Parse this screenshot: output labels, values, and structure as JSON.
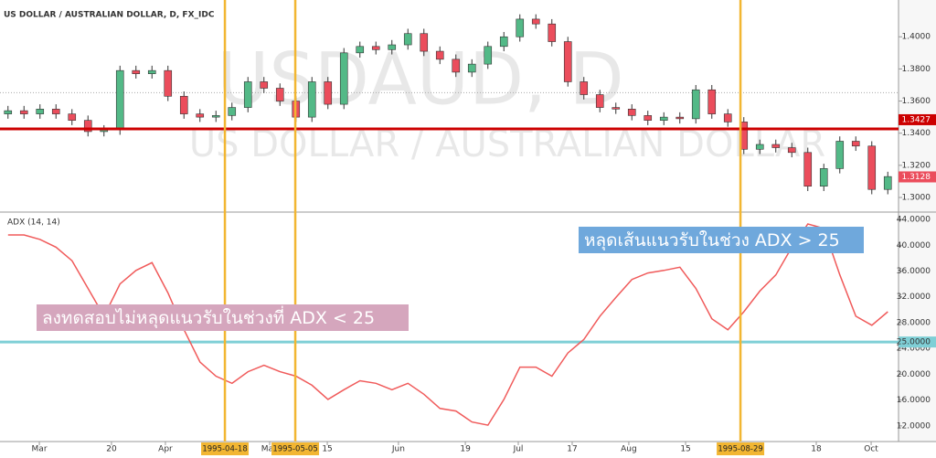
{
  "chart_data": [
    {
      "type": "candlestick",
      "title": "US DOLLAR / AUSTRALIAN DOLLAR, D, FX_IDC",
      "watermark": [
        "USDAUD, D",
        "US DOLLAR / AUSTRALIAN DOLLAR"
      ],
      "open": [
        1.352,
        1.354,
        1.352,
        1.355,
        1.352,
        1.348,
        1.341,
        1.342,
        1.379,
        1.377,
        1.379,
        1.363,
        1.352,
        1.35,
        1.351,
        1.356,
        1.372,
        1.368,
        1.36,
        1.35,
        1.372,
        1.358,
        1.39,
        1.394,
        1.392,
        1.395,
        1.402,
        1.391,
        1.386,
        1.378,
        1.383,
        1.394,
        1.4,
        1.411,
        1.408,
        1.397,
        1.372,
        1.364,
        1.356,
        1.355,
        1.351,
        1.348,
        1.35,
        1.349,
        1.367,
        1.352,
        1.347,
        1.33,
        1.333,
        1.331,
        1.328,
        1.307,
        1.318,
        1.335,
        1.332,
        1.305
      ],
      "high": [
        1.357,
        1.357,
        1.358,
        1.358,
        1.355,
        1.351,
        1.345,
        1.382,
        1.382,
        1.382,
        1.382,
        1.366,
        1.355,
        1.354,
        1.359,
        1.375,
        1.375,
        1.371,
        1.363,
        1.375,
        1.375,
        1.393,
        1.397,
        1.397,
        1.398,
        1.405,
        1.405,
        1.394,
        1.389,
        1.386,
        1.397,
        1.403,
        1.414,
        1.414,
        1.411,
        1.4,
        1.375,
        1.367,
        1.359,
        1.358,
        1.354,
        1.353,
        1.353,
        1.37,
        1.37,
        1.355,
        1.35,
        1.336,
        1.336,
        1.334,
        1.331,
        1.321,
        1.338,
        1.338,
        1.335,
        1.316
      ],
      "low": [
        1.349,
        1.349,
        1.349,
        1.349,
        1.345,
        1.338,
        1.338,
        1.339,
        1.374,
        1.374,
        1.36,
        1.349,
        1.347,
        1.347,
        1.348,
        1.353,
        1.365,
        1.357,
        1.347,
        1.347,
        1.355,
        1.355,
        1.387,
        1.389,
        1.389,
        1.392,
        1.388,
        1.383,
        1.375,
        1.375,
        1.38,
        1.391,
        1.397,
        1.405,
        1.394,
        1.369,
        1.361,
        1.353,
        1.352,
        1.348,
        1.345,
        1.345,
        1.346,
        1.346,
        1.349,
        1.344,
        1.327,
        1.327,
        1.328,
        1.325,
        1.304,
        1.304,
        1.315,
        1.329,
        1.302,
        1.302
      ],
      "close": [
        1.354,
        1.352,
        1.355,
        1.352,
        1.348,
        1.341,
        1.342,
        1.379,
        1.377,
        1.379,
        1.363,
        1.352,
        1.35,
        1.351,
        1.356,
        1.372,
        1.368,
        1.36,
        1.35,
        1.372,
        1.358,
        1.39,
        1.394,
        1.392,
        1.395,
        1.402,
        1.391,
        1.386,
        1.378,
        1.383,
        1.394,
        1.4,
        1.411,
        1.408,
        1.397,
        1.372,
        1.364,
        1.356,
        1.355,
        1.351,
        1.348,
        1.35,
        1.349,
        1.367,
        1.352,
        1.347,
        1.33,
        1.333,
        1.331,
        1.328,
        1.307,
        1.318,
        1.335,
        1.332,
        1.305,
        1.313
      ],
      "up_color": "#53b987",
      "down_color": "#eb4d5c",
      "ylim": [
        1.2909,
        1.4229
      ],
      "yticks": [
        {
          "value": 1.3,
          "label": "1.3000"
        },
        {
          "value": 1.32,
          "label": "1.3200"
        },
        {
          "value": 1.34,
          "label": "1.3400"
        },
        {
          "value": 1.36,
          "label": "1.3600"
        },
        {
          "value": 1.38,
          "label": "1.3800"
        },
        {
          "value": 1.4,
          "label": "1.4000"
        }
      ],
      "support_line": {
        "value": 1.3427,
        "label": "1.3427",
        "color": "#cc0000"
      },
      "last_price": {
        "value": 1.3128,
        "label": "1.3128"
      },
      "reference_line": 1.3652
    },
    {
      "type": "line",
      "title": "ADX (14, 14)",
      "values": [
        41.6,
        41.6,
        40.9,
        39.7,
        37.6,
        33.3,
        29.0,
        34.0,
        36.1,
        37.3,
        32.6,
        26.9,
        21.9,
        19.7,
        18.6,
        20.4,
        21.4,
        20.4,
        19.7,
        18.3,
        16.1,
        17.6,
        19.0,
        18.6,
        17.6,
        18.6,
        16.9,
        14.7,
        14.3,
        12.6,
        12.1,
        16.1,
        21.1,
        21.1,
        19.7,
        23.3,
        25.4,
        29.0,
        31.9,
        34.7,
        35.7,
        36.1,
        36.6,
        33.3,
        28.6,
        26.9,
        29.7,
        32.9,
        35.4,
        39.7,
        43.3,
        42.6,
        35.4,
        29.0,
        27.6,
        29.7
      ],
      "color": "#f05a5a",
      "ylim": [
        9.57,
        45.14
      ],
      "yticks": [
        {
          "value": 12,
          "label": "12.0000"
        },
        {
          "value": 16,
          "label": "16.0000"
        },
        {
          "value": 20,
          "label": "20.0000"
        },
        {
          "value": 24,
          "label": "24.0000"
        },
        {
          "value": 28,
          "label": "28.0000"
        },
        {
          "value": 32,
          "label": "32.0000"
        },
        {
          "value": 36,
          "label": "36.0000"
        },
        {
          "value": 40,
          "label": "40.0000"
        },
        {
          "value": 44,
          "label": "44.0000"
        }
      ],
      "threshold": {
        "value": 25,
        "label": "25.0000",
        "color": "#7fcfd6"
      },
      "xlim": [
        0,
        56
      ],
      "xticks": [
        {
          "value": 2.46,
          "label": "Mar"
        },
        {
          "value": 6.97,
          "label": "20"
        },
        {
          "value": 10.34,
          "label": "Apr"
        },
        {
          "value": 16.86,
          "label": "May"
        },
        {
          "value": 20.46,
          "label": "15"
        },
        {
          "value": 24.91,
          "label": "Jun"
        },
        {
          "value": 29.09,
          "label": "19"
        },
        {
          "value": 32.4,
          "label": "Jul"
        },
        {
          "value": 35.77,
          "label": "17"
        },
        {
          "value": 39.31,
          "label": "Aug"
        },
        {
          "value": 42.86,
          "label": "15"
        },
        {
          "value": 51.03,
          "label": "18"
        },
        {
          "value": 54.46,
          "label": "Oct"
        }
      ],
      "markers": [
        {
          "value": 14.06,
          "label": "1995-04-18"
        },
        {
          "value": 18.46,
          "label": "1995-05-05"
        },
        {
          "value": 46.29,
          "label": "1995-08-29"
        }
      ],
      "marker_color": "#f2b632",
      "annotations": [
        {
          "text": "หลุดเส้นแนวรับในช่วง ADX > 25",
          "color": "#6fa8dc"
        },
        {
          "text": "ลงทดสอบไม่หลุดแนวรับในช่วงที่ ADX < 25",
          "color": "#d5a6bd"
        }
      ]
    }
  ]
}
